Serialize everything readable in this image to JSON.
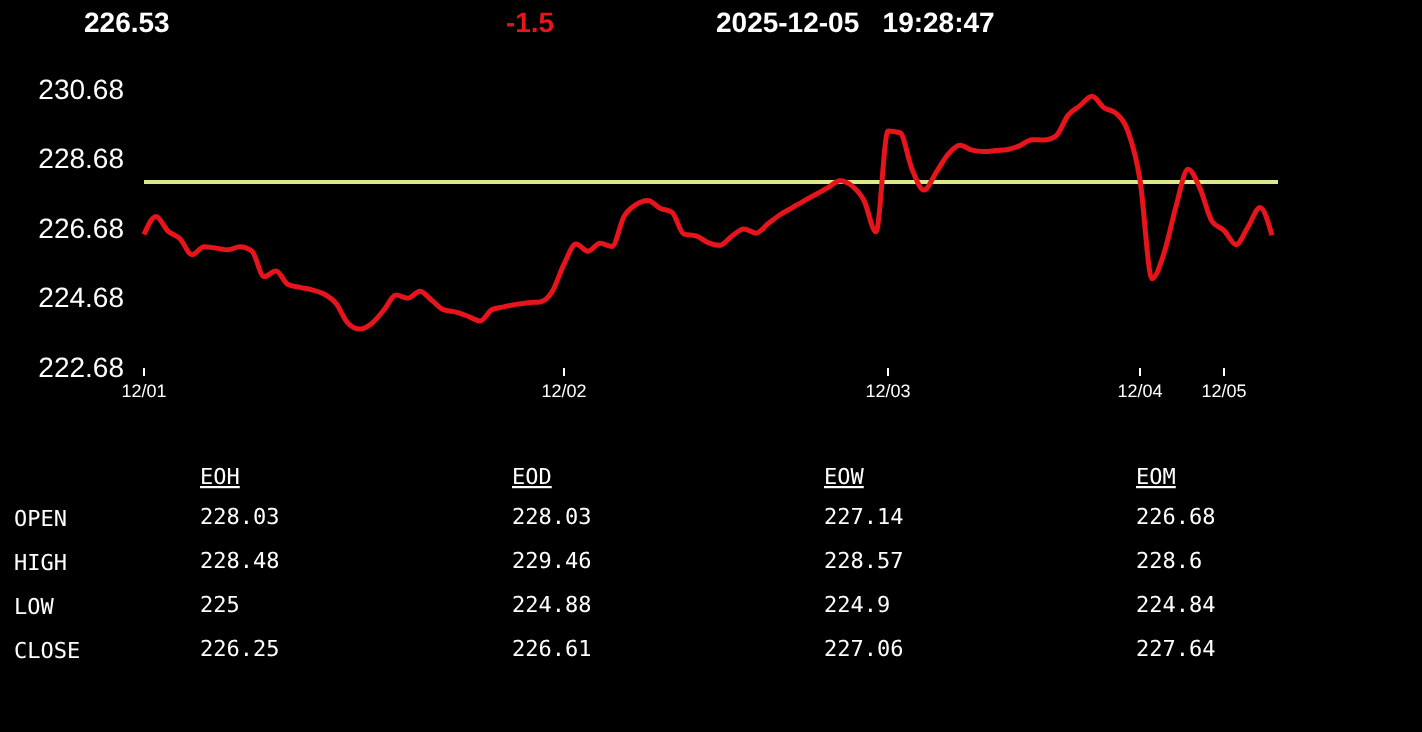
{
  "chart_data": [
    {
      "type": "line",
      "title": "226.53",
      "subtitle": "-1.5",
      "annotations": [
        "2025-12-05   19:28:47"
      ],
      "categories": [
        "12/01",
        null,
        null,
        null,
        null,
        null,
        null,
        null,
        null,
        null,
        null,
        null,
        null,
        null,
        null,
        null,
        null,
        null,
        null,
        null,
        null,
        null,
        null,
        null,
        null,
        null,
        null,
        null,
        null,
        null,
        null,
        null,
        null,
        null,
        null,
        "12/02",
        null,
        null,
        null,
        null,
        null,
        null,
        null,
        null,
        null,
        null,
        null,
        null,
        null,
        null,
        null,
        null,
        null,
        null,
        null,
        null,
        null,
        null,
        null,
        null,
        null,
        null,
        "12/03",
        null,
        null,
        null,
        null,
        null,
        null,
        null,
        null,
        null,
        null,
        null,
        null,
        null,
        null,
        null,
        null,
        null,
        null,
        null,
        null,
        "12/04",
        null,
        null,
        null,
        null,
        null,
        null,
        "12/05",
        null,
        null,
        null,
        null
      ],
      "series": [
        {
          "color": "#e8141b",
          "values": [
            226.52,
            227.04,
            226.62,
            226.4,
            225.94,
            226.17,
            226.13,
            226.08,
            226.17,
            226.04,
            225.31,
            225.47,
            225.08,
            225.0,
            224.93,
            224.81,
            224.54,
            223.97,
            223.8,
            223.97,
            224.35,
            224.78,
            224.69,
            224.89,
            224.62,
            224.35,
            224.29,
            224.17,
            224.03,
            224.36,
            224.44,
            224.51,
            224.56,
            224.58,
            224.87,
            225.67,
            226.25,
            226.04,
            226.27,
            226.18,
            227.04,
            227.38,
            227.5,
            227.28,
            227.16,
            226.53,
            226.48,
            226.29,
            226.21,
            226.48,
            226.68,
            226.56,
            226.83,
            227.09,
            227.29,
            227.49,
            227.68,
            227.87,
            228.07,
            227.92,
            227.5,
            226.6,
            229.5,
            229.45,
            228.4,
            227.8,
            228.3,
            228.83,
            229.09,
            228.95,
            228.91,
            228.94,
            228.97,
            229.08,
            229.25,
            229.24,
            229.36,
            229.95,
            230.23,
            230.5,
            230.17,
            230.01,
            229.49,
            228.09,
            225.25,
            225.98,
            227.33,
            228.4,
            227.85,
            226.9,
            226.64,
            226.23,
            226.74,
            227.3,
            226.5
          ]
        }
      ],
      "ylim": [
        222.68,
        230.68
      ],
      "yticks": [
        222.68,
        224.68,
        226.68,
        228.68,
        230.68
      ],
      "ref_lines": [
        {
          "axis": "y",
          "value": 228.03,
          "color": "#dde88a"
        }
      ],
      "grid": false
    },
    {
      "type": "other",
      "categories": [
        "EOH",
        "EOD",
        "EOW",
        "EOM"
      ],
      "y_categories": [
        "OPEN",
        "HIGH",
        "LOW",
        "CLOSE"
      ],
      "cell_labels": [
        [
          "228.03",
          "228.03",
          "227.14",
          "226.68"
        ],
        [
          "228.48",
          "229.46",
          "228.57",
          "228.6"
        ],
        [
          "225",
          "224.88",
          "224.9",
          "224.84"
        ],
        [
          "226.25",
          "226.61",
          "227.06",
          "227.64"
        ]
      ]
    }
  ]
}
